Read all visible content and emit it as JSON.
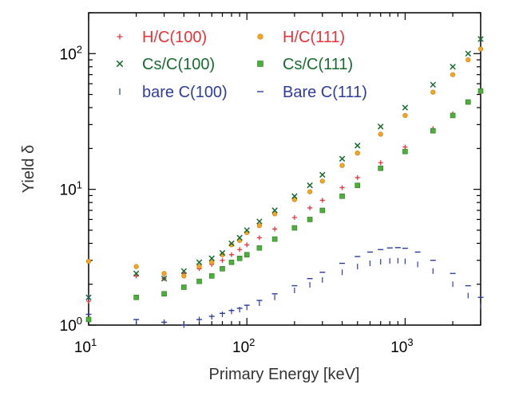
{
  "chart_data": {
    "type": "scatter",
    "xlabel": "Primary Energy [keV]",
    "ylabel": "Yield δ",
    "xscale": "log",
    "yscale": "log",
    "xlim": [
      10,
      3000
    ],
    "ylim": [
      1,
      200
    ],
    "legend_position": "top-left",
    "x_ticks": [
      {
        "base": "10",
        "exp": "1",
        "value": 10
      },
      {
        "base": "10",
        "exp": "2",
        "value": 100
      },
      {
        "base": "10",
        "exp": "3",
        "value": 1000
      }
    ],
    "y_ticks": [
      {
        "base": "10",
        "exp": "0",
        "value": 1
      },
      {
        "base": "10",
        "exp": "1",
        "value": 10
      },
      {
        "base": "10",
        "exp": "2",
        "value": 100
      }
    ],
    "series": [
      {
        "name": "H/C(100)",
        "marker": "plus",
        "color": "#e8333a",
        "points": [
          [
            10,
            1.5
          ],
          [
            20,
            2.3
          ],
          [
            30,
            2.2
          ],
          [
            40,
            2.4
          ],
          [
            50,
            2.6
          ],
          [
            60,
            2.8
          ],
          [
            70,
            3.0
          ],
          [
            80,
            3.3
          ],
          [
            90,
            3.6
          ],
          [
            100,
            3.9
          ],
          [
            120,
            4.4
          ],
          [
            150,
            5.1
          ],
          [
            200,
            6.2
          ],
          [
            250,
            7.3
          ],
          [
            300,
            8.3
          ],
          [
            400,
            10.3
          ],
          [
            500,
            12.2
          ],
          [
            700,
            15.7
          ],
          [
            1000,
            20.5
          ],
          [
            1500,
            28
          ],
          [
            2000,
            36
          ],
          [
            2500,
            44
          ],
          [
            3000,
            52
          ]
        ]
      },
      {
        "name": "H/C(111)",
        "marker": "circle",
        "color": "#f5a623",
        "points": [
          [
            10,
            2.95
          ],
          [
            20,
            2.7
          ],
          [
            30,
            2.4
          ],
          [
            40,
            2.3
          ],
          [
            50,
            2.7
          ],
          [
            60,
            2.9
          ],
          [
            70,
            3.3
          ],
          [
            80,
            3.9
          ],
          [
            90,
            4.2
          ],
          [
            100,
            4.8
          ],
          [
            120,
            5.4
          ],
          [
            150,
            6.6
          ],
          [
            200,
            8.4
          ],
          [
            250,
            9.6
          ],
          [
            300,
            11.5
          ],
          [
            400,
            15
          ],
          [
            500,
            18.5
          ],
          [
            700,
            25.5
          ],
          [
            1000,
            35
          ],
          [
            1500,
            52
          ],
          [
            2000,
            70
          ],
          [
            2500,
            90
          ],
          [
            3000,
            108
          ]
        ]
      },
      {
        "name": "Cs/C(100)",
        "marker": "x",
        "color": "#1a6b2f",
        "points": [
          [
            10,
            1.6
          ],
          [
            20,
            2.4
          ],
          [
            30,
            2.2
          ],
          [
            40,
            2.5
          ],
          [
            50,
            2.9
          ],
          [
            60,
            3.1
          ],
          [
            70,
            3.4
          ],
          [
            80,
            4.0
          ],
          [
            90,
            4.4
          ],
          [
            100,
            5.0
          ],
          [
            120,
            5.8
          ],
          [
            150,
            7.0
          ],
          [
            200,
            8.9
          ],
          [
            250,
            10.7
          ],
          [
            300,
            12.8
          ],
          [
            400,
            16.8
          ],
          [
            500,
            21
          ],
          [
            700,
            29
          ],
          [
            1000,
            40
          ],
          [
            1500,
            59
          ],
          [
            2000,
            80
          ],
          [
            2500,
            100
          ],
          [
            3000,
            128
          ]
        ]
      },
      {
        "name": "Cs/C(111)",
        "marker": "square",
        "color": "#4caf3a",
        "points": [
          [
            10,
            1.1
          ],
          [
            20,
            1.6
          ],
          [
            30,
            1.7
          ],
          [
            40,
            1.9
          ],
          [
            50,
            2.1
          ],
          [
            60,
            2.3
          ],
          [
            70,
            2.6
          ],
          [
            80,
            2.9
          ],
          [
            90,
            3.1
          ],
          [
            100,
            3.3
          ],
          [
            120,
            3.7
          ],
          [
            150,
            4.3
          ],
          [
            200,
            5.2
          ],
          [
            250,
            6.0
          ],
          [
            300,
            7.0
          ],
          [
            400,
            8.9
          ],
          [
            500,
            10.7
          ],
          [
            700,
            14.3
          ],
          [
            1000,
            19
          ],
          [
            1500,
            27
          ],
          [
            2000,
            35
          ],
          [
            2500,
            44
          ],
          [
            3000,
            53
          ]
        ]
      },
      {
        "name": "bare C(100)",
        "marker": "vdash",
        "color": "#2e3d9c",
        "points": [
          [
            10,
            1.6
          ],
          [
            20,
            1.05
          ],
          [
            30,
            1.05
          ],
          [
            40,
            1.0
          ],
          [
            50,
            1.1
          ],
          [
            60,
            1.15
          ],
          [
            70,
            1.2
          ],
          [
            80,
            1.26
          ],
          [
            90,
            1.3
          ],
          [
            100,
            1.35
          ],
          [
            120,
            1.45
          ],
          [
            150,
            1.6
          ],
          [
            200,
            1.8
          ],
          [
            250,
            1.98
          ],
          [
            300,
            2.15
          ],
          [
            400,
            2.45
          ],
          [
            500,
            2.7
          ],
          [
            600,
            2.85
          ],
          [
            700,
            2.93
          ],
          [
            800,
            2.97
          ],
          [
            900,
            2.98
          ],
          [
            1000,
            2.95
          ],
          [
            1200,
            2.8
          ],
          [
            1500,
            2.5
          ],
          [
            2000,
            2.0
          ],
          [
            2500,
            1.65
          ],
          [
            3000,
            1.38
          ]
        ]
      },
      {
        "name": "Bare C(111)",
        "marker": "hdash",
        "color": "#2e3d9c",
        "points": [
          [
            10,
            1.2
          ],
          [
            20,
            1.1
          ],
          [
            30,
            1.05
          ],
          [
            40,
            1.0
          ],
          [
            50,
            1.1
          ],
          [
            60,
            1.16
          ],
          [
            70,
            1.22
          ],
          [
            80,
            1.28
          ],
          [
            90,
            1.33
          ],
          [
            100,
            1.4
          ],
          [
            120,
            1.52
          ],
          [
            150,
            1.7
          ],
          [
            200,
            1.95
          ],
          [
            250,
            2.2
          ],
          [
            300,
            2.45
          ],
          [
            400,
            2.85
          ],
          [
            500,
            3.2
          ],
          [
            600,
            3.45
          ],
          [
            700,
            3.6
          ],
          [
            800,
            3.7
          ],
          [
            900,
            3.72
          ],
          [
            1000,
            3.68
          ],
          [
            1200,
            3.45
          ],
          [
            1500,
            3.0
          ],
          [
            2000,
            2.4
          ],
          [
            2500,
            1.95
          ],
          [
            3000,
            1.6
          ]
        ]
      }
    ]
  }
}
